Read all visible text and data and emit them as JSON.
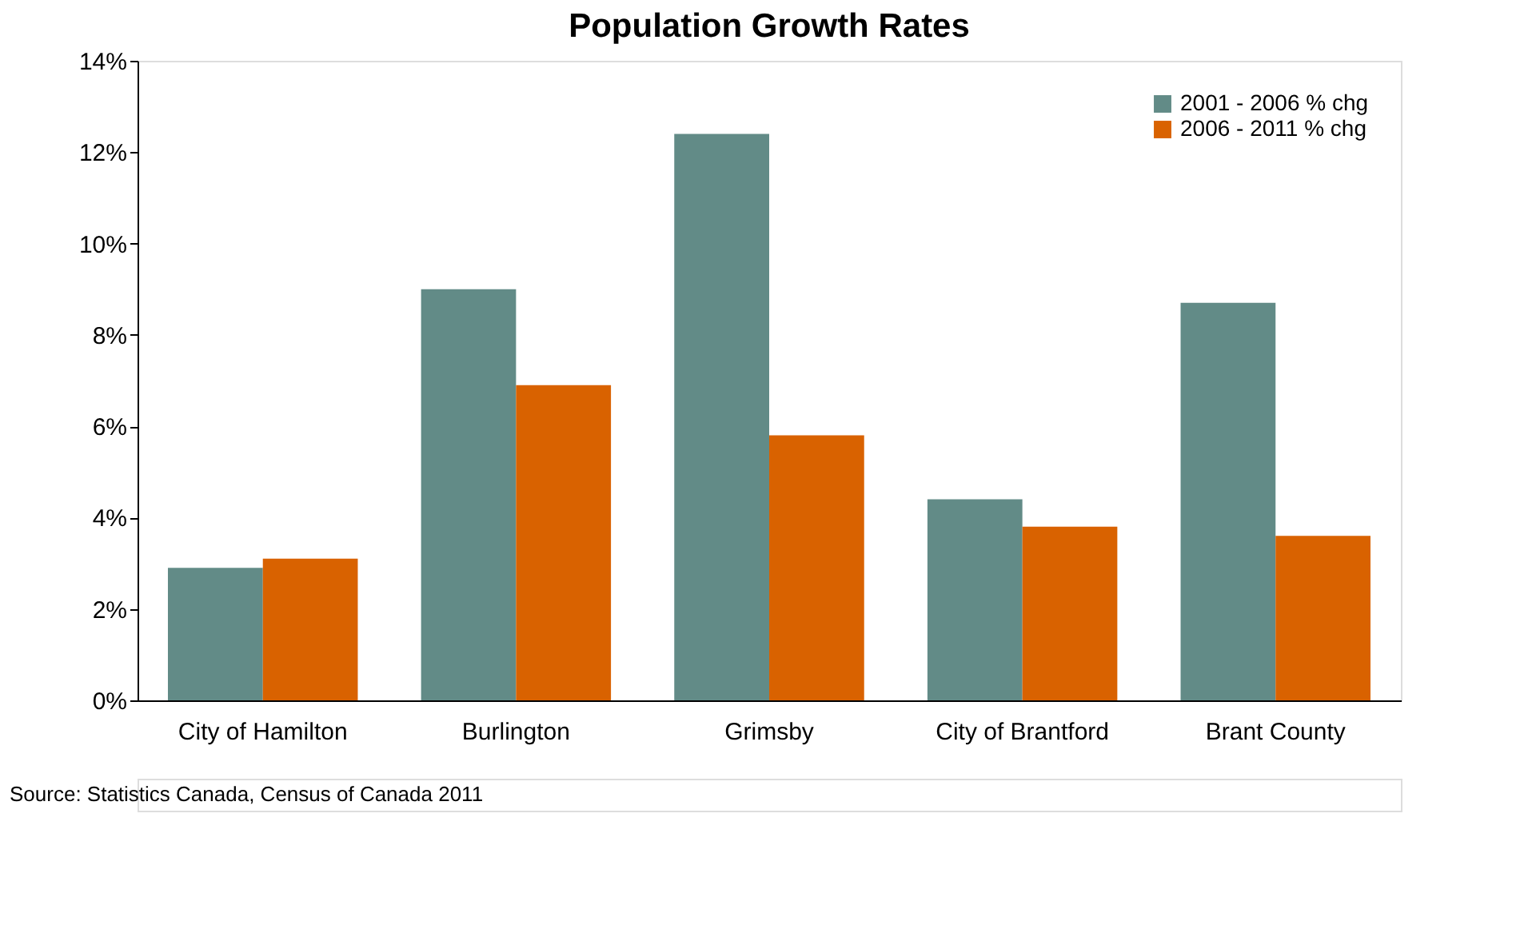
{
  "chart_data": {
    "type": "bar",
    "title": "Population Growth Rates",
    "categories": [
      "City of Hamilton",
      "Burlington",
      "Grimsby",
      "City of Brantford",
      "Brant County"
    ],
    "series": [
      {
        "name": "2001 - 2006 % chg",
        "color": "#628b87",
        "values": [
          2.9,
          9.0,
          12.4,
          4.4,
          8.7
        ]
      },
      {
        "name": "2006 - 2011 % chg",
        "color": "#d96200",
        "values": [
          3.1,
          6.9,
          5.8,
          3.8,
          3.6
        ]
      }
    ],
    "ylim": [
      0,
      14
    ],
    "yticks": [
      {
        "value": 0,
        "label": "0%"
      },
      {
        "value": 2,
        "label": "2%"
      },
      {
        "value": 4,
        "label": "4%"
      },
      {
        "value": 6,
        "label": "6%"
      },
      {
        "value": 8,
        "label": "8%"
      },
      {
        "value": 10,
        "label": "10%"
      },
      {
        "value": 12,
        "label": "12%"
      },
      {
        "value": 14,
        "label": "14%"
      }
    ],
    "grid": false,
    "legend": "top right",
    "annotations": [
      "Source: Statistics Canada, Census of Canada 2011"
    ]
  }
}
